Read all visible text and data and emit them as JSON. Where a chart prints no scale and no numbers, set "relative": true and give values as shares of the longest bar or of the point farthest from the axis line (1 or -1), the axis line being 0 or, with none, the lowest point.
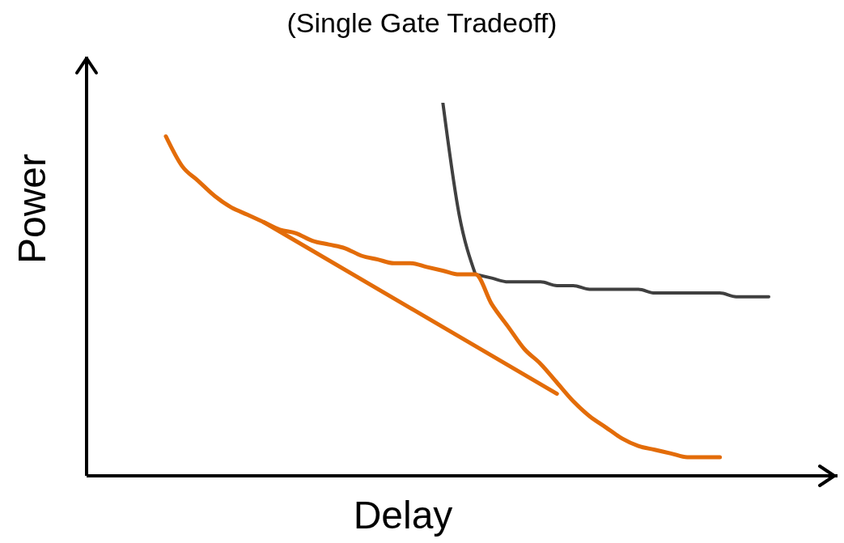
{
  "chart_data": {
    "type": "line",
    "title": "(Single Gate Tradeoff)",
    "xlabel": "Delay",
    "ylabel": "Power",
    "relative": true,
    "categories": [
      null,
      null,
      null,
      null,
      null,
      null,
      null,
      null,
      null,
      null,
      null,
      null,
      null,
      null,
      null,
      null,
      null,
      null,
      null,
      null,
      null,
      null,
      null,
      null,
      null,
      null,
      null,
      null,
      null,
      null,
      null,
      null,
      null,
      null,
      null,
      null,
      null,
      null
    ],
    "series": [
      {
        "color": "#404040",
        "values": [
          null,
          null,
          null,
          null,
          null,
          null,
          null,
          null,
          null,
          null,
          null,
          null,
          null,
          null,
          null,
          null,
          null,
          null,
          null,
          0.54,
          0.53,
          0.52,
          0.52,
          0.52,
          0.51,
          0.51,
          0.5,
          0.5,
          0.5,
          0.5,
          0.49,
          0.49,
          0.49,
          0.49,
          0.49,
          0.48,
          0.48,
          0.48
        ]
      },
      {
        "color": "#404040",
        "values": [
          null,
          null,
          null,
          null,
          null,
          null,
          null,
          null,
          null,
          null,
          null,
          null,
          null,
          null,
          null,
          null,
          null,
          1.0,
          0.7,
          0.54,
          null,
          null,
          null,
          null,
          null,
          null,
          null,
          null,
          null,
          null,
          null,
          null,
          null,
          null,
          null,
          null,
          null,
          null
        ]
      },
      {
        "color": "#e36c09",
        "values": [
          0.91,
          0.83,
          0.79,
          0.75,
          0.72,
          0.7,
          0.68,
          0.66,
          0.65,
          0.63,
          0.62,
          0.61,
          0.59,
          0.58,
          0.57,
          0.57,
          0.56,
          0.55,
          0.54,
          0.54,
          0.46,
          0.4,
          0.34,
          0.3,
          0.25,
          0.2,
          0.16,
          0.13,
          0.1,
          0.08,
          0.07,
          0.06,
          0.05,
          0.05,
          0.05,
          null,
          null,
          null
        ]
      },
      {
        "color": "#e36c09",
        "values": [
          null,
          null,
          null,
          null,
          null,
          null,
          0.68,
          null,
          null,
          null,
          null,
          null,
          null,
          null,
          null,
          null,
          null,
          null,
          null,
          null,
          null,
          null,
          null,
          null,
          0.22,
          null,
          null,
          null,
          null,
          null,
          null,
          null,
          null,
          null,
          null,
          null,
          null,
          null
        ]
      }
    ]
  }
}
